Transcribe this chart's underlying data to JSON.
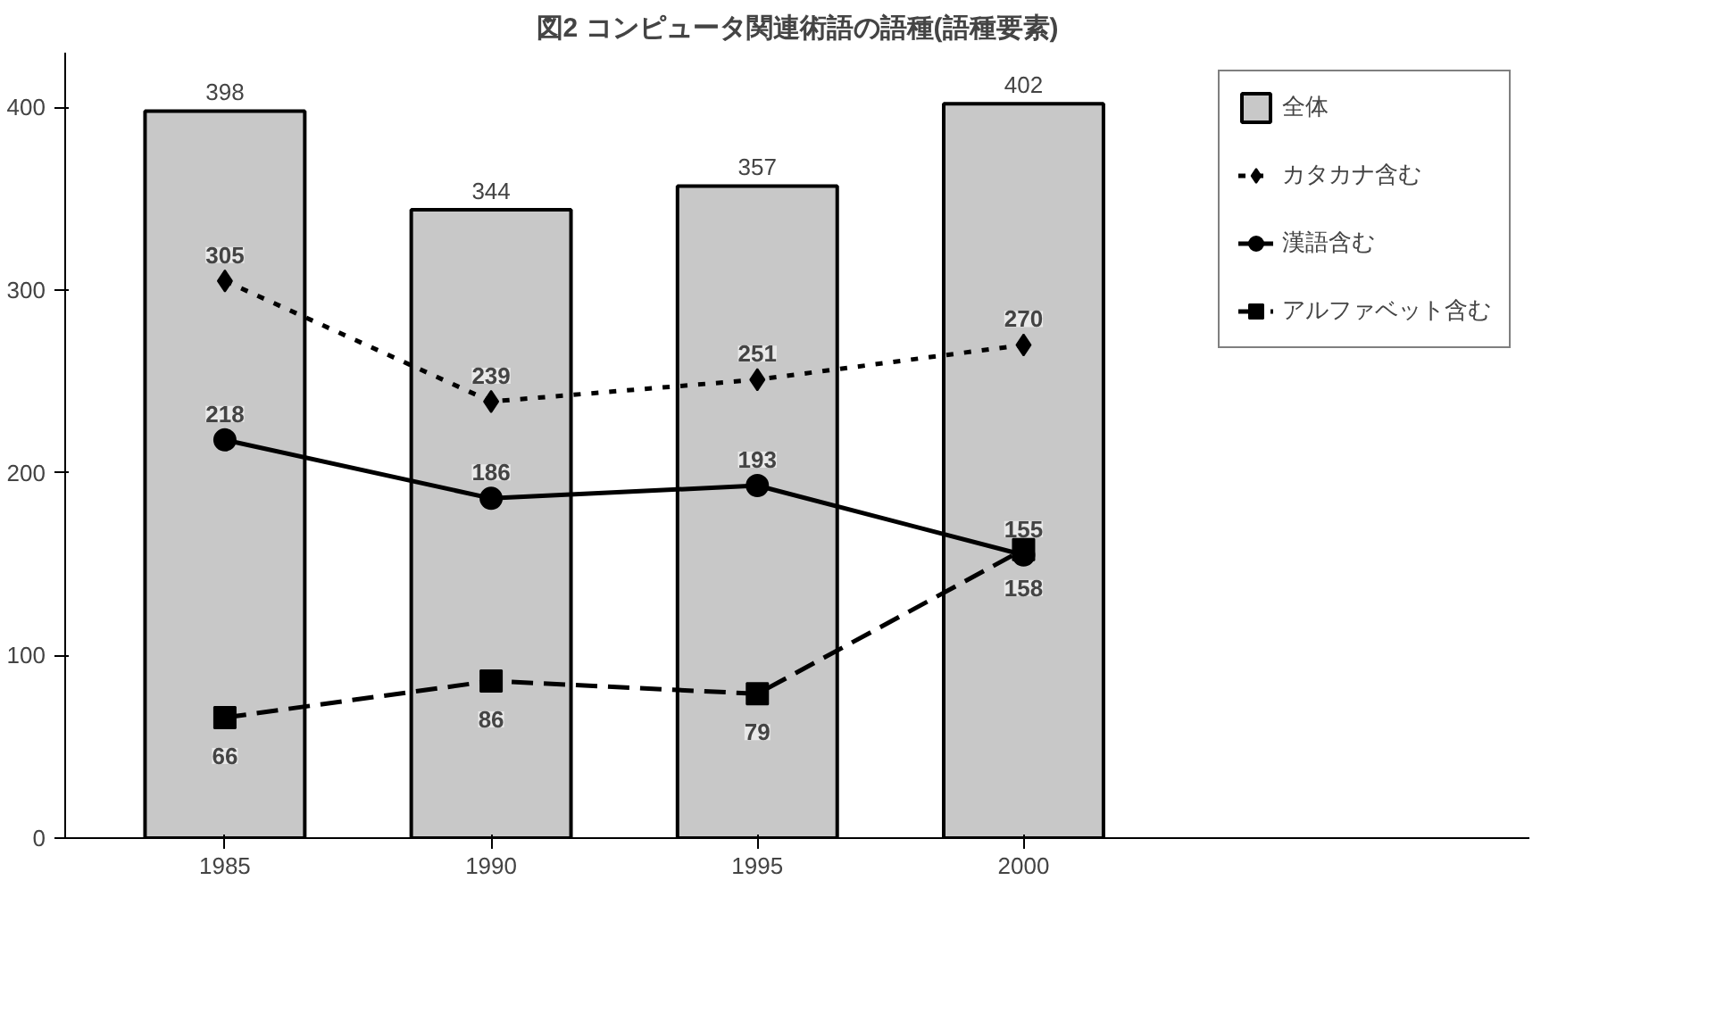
{
  "chart_data": {
    "type": "bar",
    "title": "図2 コンピュータ関連術語の語種(語種要素)",
    "categories": [
      "1985",
      "1990",
      "1995",
      "2000"
    ],
    "series": [
      {
        "name": "全体",
        "color": "#c8c8c8",
        "values": [
          398,
          344,
          357,
          402
        ]
      },
      {
        "name": "カタカナ含む",
        "type": "line",
        "color": "#000000",
        "marker": "diamond",
        "line_style": "dotted",
        "values": [
          305,
          239,
          251,
          270
        ]
      },
      {
        "name": "漢語含む",
        "type": "line",
        "color": "#000000",
        "marker": "circle",
        "line_style": "solid",
        "values": [
          218,
          186,
          193,
          155
        ]
      },
      {
        "name": "アルファベット含む",
        "type": "line",
        "color": "#000000",
        "marker": "square",
        "line_style": "dashed",
        "values": [
          66,
          86,
          79,
          158
        ]
      }
    ],
    "ylim": [
      0,
      430
    ],
    "yticks": [
      0,
      100,
      200,
      300,
      400
    ],
    "grid": false,
    "legend": "right",
    "data_labels": true
  }
}
